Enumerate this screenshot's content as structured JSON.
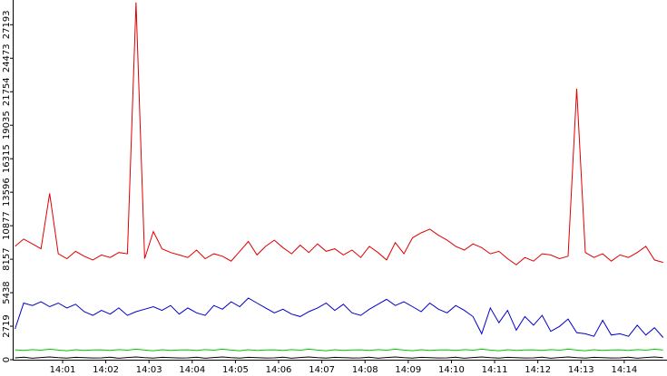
{
  "chart_data": {
    "type": "line",
    "x": [
      839.9,
      840.1,
      840.3,
      840.5,
      840.7,
      840.9,
      841.1,
      841.3,
      841.5,
      841.7,
      841.9,
      842.1,
      842.3,
      842.5,
      842.7,
      842.9,
      843.1,
      843.3,
      843.5,
      843.7,
      843.9,
      844.1,
      844.3,
      844.5,
      844.7,
      844.9,
      845.1,
      845.3,
      845.5,
      845.7,
      845.9,
      846.1,
      846.3,
      846.5,
      846.7,
      846.9,
      847.1,
      847.3,
      847.5,
      847.7,
      847.9,
      848.1,
      848.3,
      848.5,
      848.7,
      848.9,
      849.1,
      849.3,
      849.5,
      849.7,
      849.9,
      850.1,
      850.3,
      850.5,
      850.7,
      850.9,
      851.1,
      851.3,
      851.5,
      851.7,
      851.9,
      852.1,
      852.3,
      852.5,
      852.7,
      852.9,
      853.1,
      853.3,
      853.5,
      853.7,
      853.9,
      854.1,
      854.3,
      854.5,
      854.7,
      854.9
    ],
    "series": [
      {
        "color": "#e00000",
        "values": [
          9200,
          9800,
          9400,
          9000,
          13500,
          8600,
          8200,
          8800,
          8400,
          8100,
          8500,
          8300,
          8700,
          8600,
          29000,
          8200,
          10400,
          9000,
          8700,
          8500,
          8300,
          8900,
          8200,
          8600,
          8400,
          8000,
          8800,
          9600,
          8500,
          9200,
          9700,
          9100,
          8600,
          9300,
          8700,
          9400,
          8800,
          9000,
          8500,
          8900,
          8300,
          9200,
          8700,
          8100,
          9500,
          8600,
          9900,
          10300,
          10600,
          10100,
          9700,
          9200,
          8900,
          9400,
          9100,
          8600,
          8800,
          8200,
          7700,
          8300,
          8000,
          8600,
          8500,
          8200,
          8400,
          22000,
          8700,
          8300,
          8600,
          8000,
          8500,
          8300,
          8700,
          9200,
          8100,
          7900
        ]
      },
      {
        "color": "#0000c8",
        "values": [
          2500,
          4600,
          4400,
          4700,
          4300,
          4600,
          4200,
          4500,
          3900,
          3600,
          4000,
          3700,
          4200,
          3600,
          3900,
          4100,
          4300,
          4000,
          4400,
          3700,
          4200,
          3800,
          3600,
          4400,
          4100,
          4700,
          4300,
          5000,
          4600,
          4200,
          3800,
          4100,
          3700,
          3500,
          3900,
          4200,
          4600,
          4000,
          4500,
          3800,
          3600,
          4100,
          4500,
          4900,
          4400,
          4700,
          4300,
          3900,
          4600,
          4100,
          3800,
          4400,
          4000,
          3500,
          2100,
          4200,
          3000,
          4000,
          2400,
          3500,
          2800,
          3600,
          2300,
          2700,
          3300,
          2200,
          2100,
          1900,
          3200,
          2000,
          2100,
          1900,
          2800,
          2000,
          2600,
          1800
        ]
      },
      {
        "color": "#00c800",
        "values": [
          800,
          750,
          820,
          770,
          850,
          780,
          730,
          810,
          760,
          790,
          800,
          750,
          820,
          770,
          850,
          780,
          730,
          810,
          760,
          790,
          800,
          750,
          820,
          770,
          850,
          780,
          730,
          810,
          760,
          790,
          800,
          750,
          820,
          770,
          850,
          780,
          730,
          810,
          760,
          790,
          800,
          750,
          820,
          770,
          850,
          780,
          730,
          810,
          760,
          790,
          800,
          750,
          820,
          770,
          850,
          780,
          730,
          810,
          760,
          790,
          800,
          750,
          820,
          770,
          850,
          780,
          730,
          810,
          760,
          790,
          800,
          750,
          820,
          770,
          850,
          780
        ]
      },
      {
        "color": "#000000",
        "values": [
          150,
          200,
          120,
          180,
          220,
          160,
          130,
          190,
          170,
          140,
          150,
          200,
          120,
          180,
          220,
          160,
          130,
          190,
          170,
          140,
          150,
          200,
          120,
          180,
          220,
          160,
          130,
          190,
          170,
          140,
          150,
          200,
          120,
          180,
          220,
          160,
          130,
          190,
          170,
          140,
          150,
          200,
          120,
          180,
          220,
          160,
          130,
          190,
          170,
          140,
          150,
          200,
          120,
          180,
          220,
          160,
          130,
          190,
          170,
          140,
          150,
          200,
          120,
          180,
          220,
          160,
          130,
          190,
          170,
          140,
          150,
          200,
          120,
          180,
          220,
          160
        ]
      }
    ],
    "xlim": [
      839.845,
      854.99
    ],
    "xticks": [
      {
        "value": 841,
        "label": "14:01"
      },
      {
        "value": 842,
        "label": "14:02"
      },
      {
        "value": 843,
        "label": "14:03"
      },
      {
        "value": 844,
        "label": "14:04"
      },
      {
        "value": 845,
        "label": "14:05"
      },
      {
        "value": 846,
        "label": "14:06"
      },
      {
        "value": 847,
        "label": "14:07"
      },
      {
        "value": 848,
        "label": "14:08"
      },
      {
        "value": 849,
        "label": "14:09"
      },
      {
        "value": 850,
        "label": "14:10"
      },
      {
        "value": 851,
        "label": "14:11"
      },
      {
        "value": 852,
        "label": "14:12"
      },
      {
        "value": 853,
        "label": "14:13"
      },
      {
        "value": 854,
        "label": "14:14"
      }
    ],
    "ylim": [
      0,
      29200
    ],
    "yticks": [
      0,
      2719,
      5438,
      8157,
      10877,
      13596,
      16315,
      19035,
      21754,
      24473,
      27193
    ],
    "grid": false
  }
}
